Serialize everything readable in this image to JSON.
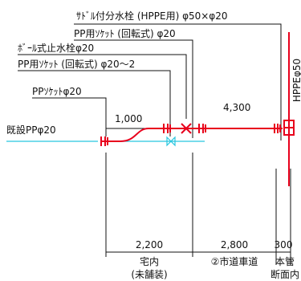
{
  "labels": {
    "saddle_valve": "ｻﾄﾞﾙ付分水栓 (HPPE用) φ50×φ20",
    "pp_socket_rotary_1": "PP用ｿｹｯﾄ (回転式) φ20",
    "ball_valve": "ﾎﾞｰﾙ式止水栓φ20",
    "pp_socket_rotary_2": "PP用ｿｹｯﾄ (回転式) φ20〜2",
    "pp_socket": "PPｿｹｯﾄφ20",
    "existing_pp": "既設PPφ20",
    "main_pipe": "HPPEφ50"
  },
  "dimensions": {
    "upper_left": "1,000",
    "upper_right": "4,300",
    "lower_left": "2,200",
    "lower_mid": "2,800",
    "lower_right": "300"
  },
  "zones": {
    "yard_line1": "宅内",
    "yard_line2": "(未舗装)",
    "road": "②市道車道",
    "main_line1": "本管",
    "main_line2": "断面内"
  },
  "colors": {
    "new_pipe": "#e8001c",
    "existing_pipe": "#27c6df",
    "lines": "#111111"
  }
}
